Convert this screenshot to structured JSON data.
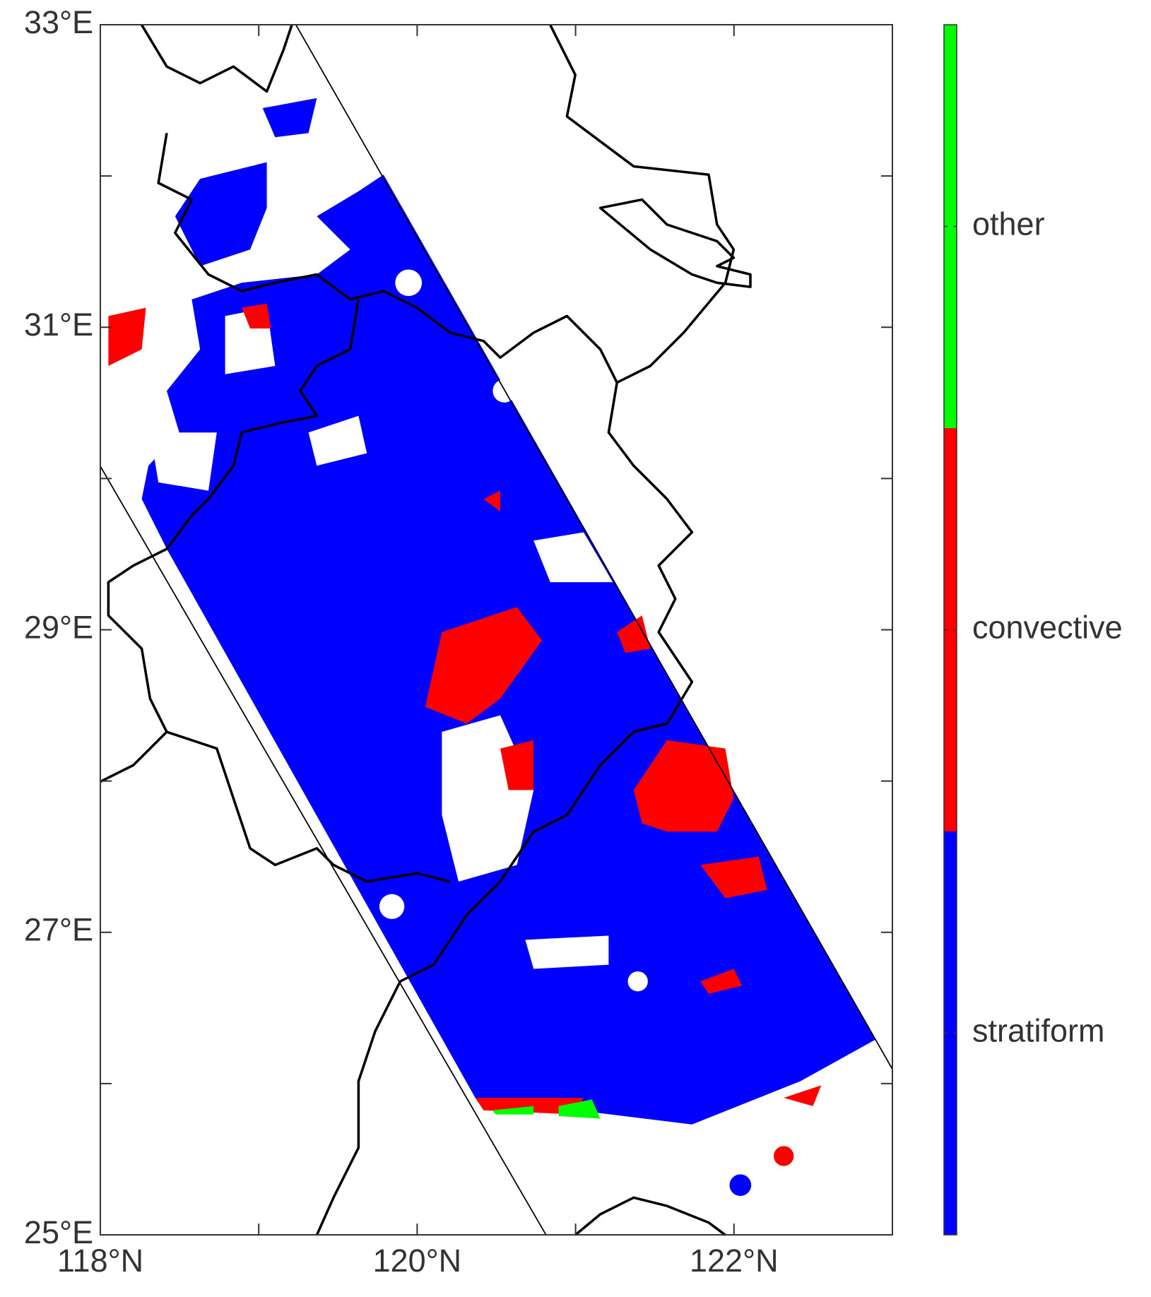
{
  "chart_data": {
    "type": "map",
    "xlim": [
      118,
      123
    ],
    "ylim": [
      25,
      33
    ],
    "xticks": [
      {
        "value": 118,
        "label": "118°N"
      },
      {
        "value": 120,
        "label": "120°N"
      },
      {
        "value": 122,
        "label": "122°N"
      }
    ],
    "xminorticks": [
      119,
      121
    ],
    "yticks": [
      {
        "value": 25,
        "label": "25°E"
      },
      {
        "value": 27,
        "label": "27°E"
      },
      {
        "value": 29,
        "label": "29°E"
      },
      {
        "value": 31,
        "label": "31°E"
      },
      {
        "value": 33,
        "label": "33°E"
      }
    ],
    "yminorticks": [
      26,
      28,
      30,
      32
    ],
    "colorbar": [
      {
        "name": "stratiform",
        "color": "#0000ff"
      },
      {
        "name": "convective",
        "color": "#ff0000"
      },
      {
        "name": "other",
        "color": "#00ff00"
      }
    ]
  }
}
